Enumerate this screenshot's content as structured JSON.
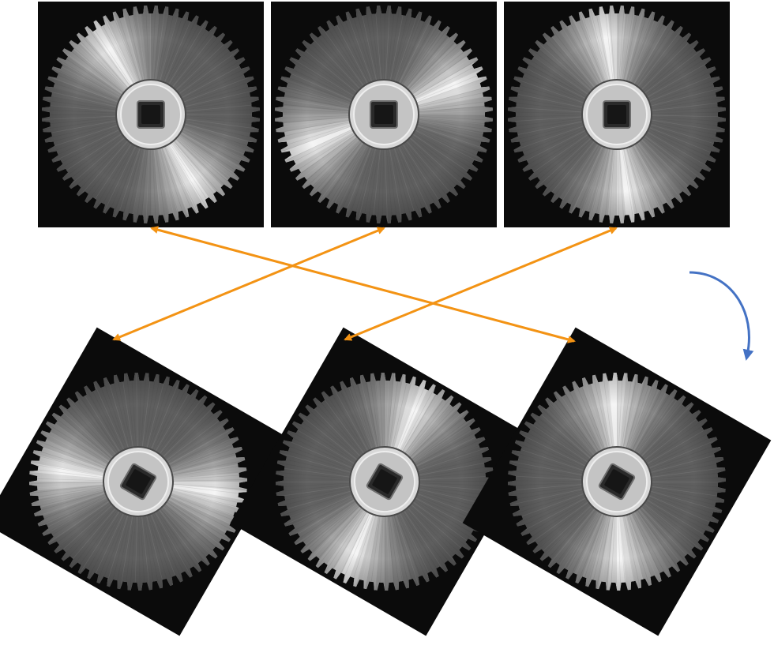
{
  "scene": {
    "background_color": "#ffffff",
    "photo_background_color": "#0b0b0b",
    "arrow_color": "#F39314",
    "rotation_arrow_color": "#4472C4",
    "gear_tooth_count": 64,
    "top_row": {
      "gears": [
        {
          "id": "gear-a",
          "bright_sector_angles": [
            55,
            235
          ],
          "rotation_deg": 0
        },
        {
          "id": "gear-b",
          "bright_sector_angles": [
            -25,
            155
          ],
          "rotation_deg": 0
        },
        {
          "id": "gear-c",
          "bright_sector_angles": [
            80,
            260
          ],
          "rotation_deg": 0
        }
      ]
    },
    "bottom_row": {
      "gears": [
        {
          "id": "gear-b-rotated",
          "bright_sector_angles": [
            -25,
            155
          ],
          "rotation_deg": 30
        },
        {
          "id": "gear-c-rotated",
          "bright_sector_angles": [
            80,
            260
          ],
          "rotation_deg": 30
        },
        {
          "id": "gear-a-rotated",
          "bright_sector_angles": [
            55,
            235
          ],
          "rotation_deg": 30
        }
      ]
    },
    "correspondences": [
      {
        "from": "gear-a",
        "to": "gear-a-rotated"
      },
      {
        "from": "gear-b",
        "to": "gear-b-rotated"
      },
      {
        "from": "gear-c",
        "to": "gear-c-rotated"
      }
    ],
    "rotation_indicator": {
      "direction": "clockwise",
      "icon": "curved-arrow-icon"
    }
  }
}
